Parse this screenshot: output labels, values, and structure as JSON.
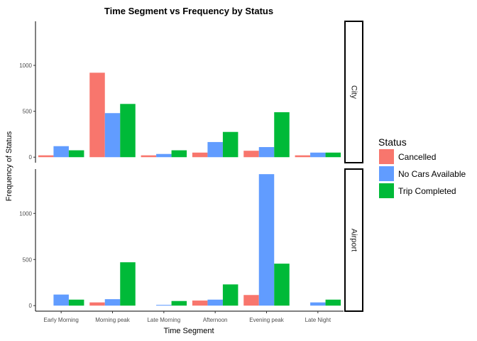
{
  "chart_data": {
    "type": "bar",
    "title": "Time Segment vs Frequency by Status",
    "xlabel": "Time Segment",
    "ylabel": "Frequency of Status",
    "categories": [
      "Early Morning",
      "Morning peak",
      "Late Morning",
      "Afternoon",
      "Evening peak",
      "Late Night"
    ],
    "ylim": [
      -60,
      1480
    ],
    "yticks": [
      0,
      500,
      1000
    ],
    "legend": {
      "title": "Status",
      "position": "right",
      "items": [
        "Cancelled",
        "No Cars Available",
        "Trip Completed"
      ]
    },
    "colors": {
      "Cancelled": "#F8766D",
      "No Cars Available": "#619CFF",
      "Trip Completed": "#00BA38"
    },
    "grid": false,
    "facets": [
      {
        "label": "City",
        "series": [
          {
            "name": "Cancelled",
            "values": [
              20,
              920,
              20,
              50,
              70,
              20
            ]
          },
          {
            "name": "No Cars Available",
            "values": [
              120,
              480,
              35,
              165,
              110,
              50
            ]
          },
          {
            "name": "Trip Completed",
            "values": [
              75,
              580,
              75,
              275,
              490,
              50
            ]
          }
        ]
      },
      {
        "label": "Airport",
        "series": [
          {
            "name": "Cancelled",
            "values": [
              0,
              35,
              0,
              55,
              115,
              0
            ]
          },
          {
            "name": "No Cars Available",
            "values": [
              120,
              70,
              8,
              65,
              1425,
              35
            ]
          },
          {
            "name": "Trip Completed",
            "values": [
              65,
              470,
              50,
              230,
              455,
              65
            ]
          }
        ]
      }
    ]
  }
}
